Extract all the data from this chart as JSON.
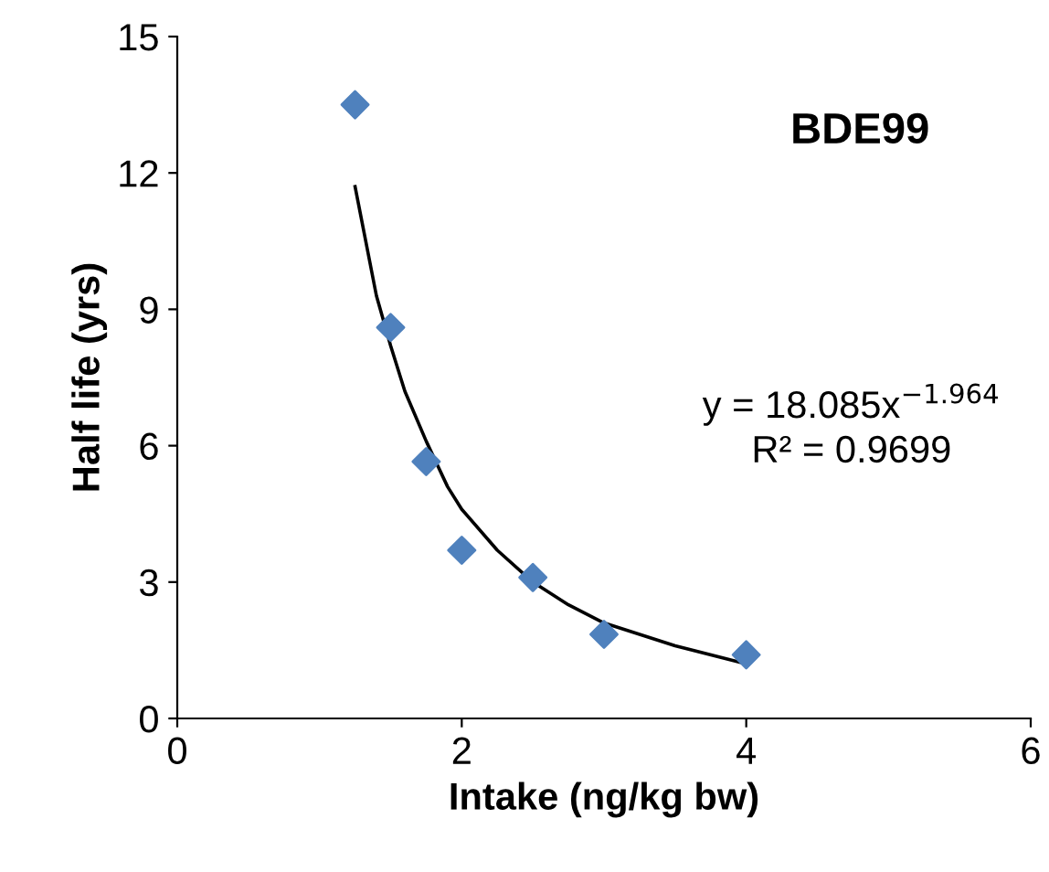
{
  "chart_data": {
    "type": "scatter",
    "xlabel": "Intake (ng/kg bw)",
    "ylabel": "Half life (yrs)",
    "xlim": [
      0,
      6
    ],
    "xticks": [
      0,
      2,
      4,
      6
    ],
    "ylim": [
      0,
      15
    ],
    "yticks": [
      0,
      3,
      6,
      9,
      12,
      15
    ],
    "grid": false,
    "legend": false,
    "series": [
      {
        "color": "#4f81bd",
        "marker": "diamond",
        "x": [
          1.25,
          1.5,
          1.75,
          2,
          2.5,
          3,
          4
        ],
        "values": [
          13.5,
          8.6,
          5.65,
          3.7,
          3.1,
          1.85,
          1.4
        ]
      },
      {
        "type": "line",
        "color": "#000000",
        "marker": "none",
        "line_style": "solid",
        "x": [
          1.25,
          1.4,
          1.5,
          1.6,
          1.75,
          1.9,
          2,
          2.25,
          2.5,
          2.75,
          3,
          3.5,
          4
        ],
        "values": [
          11.7,
          9.3,
          8.2,
          7.2,
          6.1,
          5.1,
          4.6,
          3.7,
          3.0,
          2.5,
          2.1,
          1.6,
          1.2
        ]
      }
    ],
    "annotations": [
      "y = 18.085x$^{−1.964}$",
      "R² = 0.9699"
    ],
    "title": "BDE99"
  }
}
